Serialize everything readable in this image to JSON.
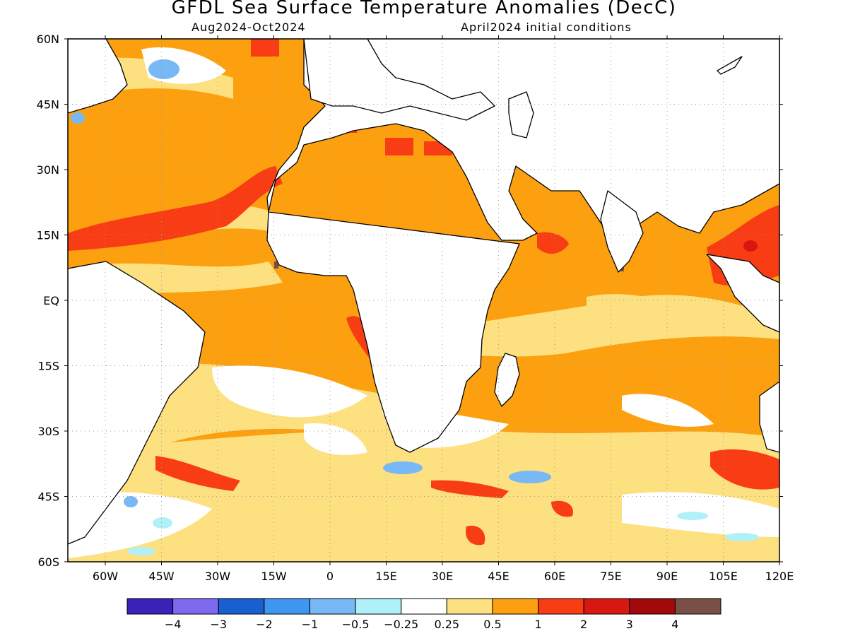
{
  "header": {
    "title": "GFDL Sea Surface Temperature Anomalies (DecC)",
    "period": "Aug2024-Oct2024",
    "init": "April2024 initial conditions"
  },
  "axes": {
    "lat_labels": [
      "60N",
      "45N",
      "30N",
      "15N",
      "EQ",
      "15S",
      "30S",
      "45S",
      "60S"
    ],
    "lon_labels": [
      "60W",
      "45W",
      "30W",
      "15W",
      "0",
      "15E",
      "30E",
      "45E",
      "60E",
      "75E",
      "90E",
      "105E",
      "120E"
    ],
    "lat_range": [
      -60,
      60
    ],
    "lon_range": [
      -70,
      120
    ],
    "grid": "dotted"
  },
  "colorbar": {
    "colors": [
      "#3a22b8",
      "#7d6af0",
      "#1860d0",
      "#3f96f0",
      "#78b8f5",
      "#b0f0f8",
      "#ffffff",
      "#fde080",
      "#fca010",
      "#f83c14",
      "#d81810",
      "#a00a0a",
      "#7a5046"
    ],
    "labels": [
      "-4",
      "-3",
      "-2",
      "-1",
      "-0.5",
      "-0.25",
      "0.25",
      "0.5",
      "1",
      "2",
      "3",
      "4"
    ]
  },
  "legend_colors": {
    "land": "#ffffff",
    "coast": "#000000",
    "c_0.25_0.5": "#fde080",
    "c_0.5_1": "#fca010",
    "c_1_2": "#f83c14",
    "c_neg": "#78b8f5"
  }
}
